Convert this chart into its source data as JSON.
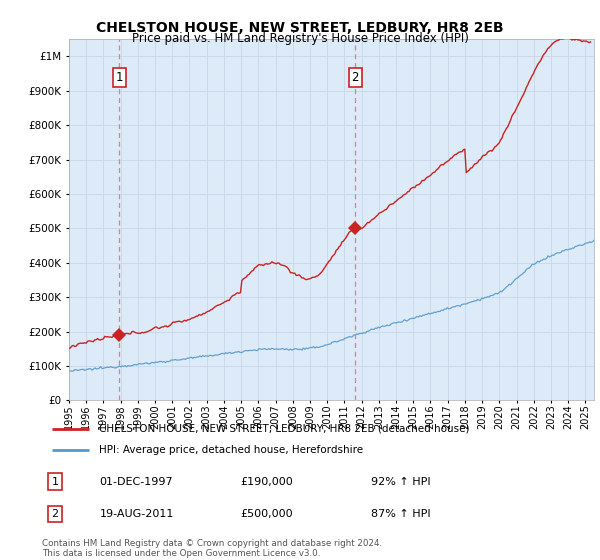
{
  "title": "CHELSTON HOUSE, NEW STREET, LEDBURY, HR8 2EB",
  "subtitle": "Price paid vs. HM Land Registry's House Price Index (HPI)",
  "ytick_values": [
    0,
    100000,
    200000,
    300000,
    400000,
    500000,
    600000,
    700000,
    800000,
    900000,
    1000000
  ],
  "ylim": [
    0,
    1050000
  ],
  "xlim_start": 1995.0,
  "xlim_end": 2025.5,
  "plot_bg_color": "#ddeaf7",
  "grid_color": "#c8d8e8",
  "sale1": {
    "date_num": 1997.92,
    "price": 190000,
    "label": "1"
  },
  "sale2": {
    "date_num": 2011.63,
    "price": 500000,
    "label": "2"
  },
  "legend_line1": "CHELSTON HOUSE, NEW STREET, LEDBURY, HR8 2EB (detached house)",
  "legend_line2": "HPI: Average price, detached house, Herefordshire",
  "table_row1": [
    "1",
    "01-DEC-1997",
    "£190,000",
    "92% ↑ HPI"
  ],
  "table_row2": [
    "2",
    "19-AUG-2011",
    "£500,000",
    "87% ↑ HPI"
  ],
  "footnote": "Contains HM Land Registry data © Crown copyright and database right 2024.\nThis data is licensed under the Open Government Licence v3.0.",
  "hpi_color": "#5599cc",
  "price_color": "#cc2222",
  "dashed_color": "#e08080"
}
